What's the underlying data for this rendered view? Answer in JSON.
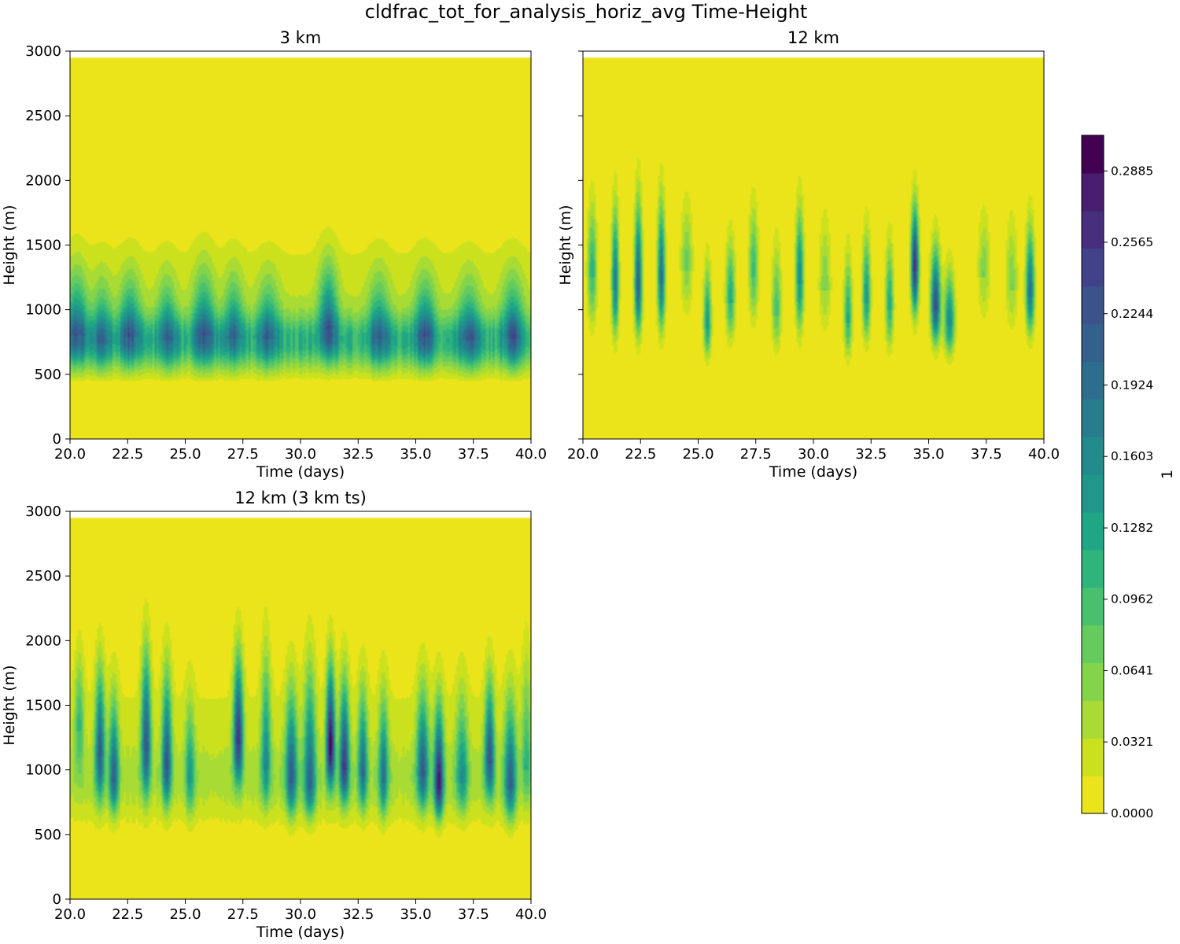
{
  "figure_title": "cldfrac_tot_for_analysis_horiz_avg Time-Height",
  "colors": {
    "levels": [
      "#ece41a",
      "#cbe11e",
      "#a8db34",
      "#84d44b",
      "#65cb5e",
      "#48c16e",
      "#2fb47c",
      "#21a685",
      "#1f988b",
      "#238a8d",
      "#277c8e",
      "#2d6e8e",
      "#33608d",
      "#3b528b",
      "#42428a",
      "#472f7d",
      "#481d6f",
      "#440154"
    ],
    "panel_bg": "#ece41a"
  },
  "colorbar": {
    "label": "1",
    "min": 0.0,
    "max": 0.3045,
    "ticks": [
      0.0,
      0.0321,
      0.0641,
      0.0962,
      0.1282,
      0.1603,
      0.1924,
      0.2244,
      0.2565,
      0.2885
    ],
    "tick_labels": [
      "0.0000",
      "0.0321",
      "0.0641",
      "0.0962",
      "0.1282",
      "0.1603",
      "0.1924",
      "0.2244",
      "0.2565",
      "0.2885"
    ]
  },
  "chart_data": [
    {
      "type": "heatmap",
      "title": "3 km",
      "xlabel": "Time (days)",
      "ylabel": "Height (m)",
      "xlim": [
        20.0,
        40.0
      ],
      "ylim": [
        0,
        3000
      ],
      "data_top": 2950,
      "x_ticks": [
        20.0,
        22.5,
        25.0,
        27.5,
        30.0,
        32.5,
        35.0,
        37.5,
        40.0
      ],
      "x_tick_labels": [
        "20.0",
        "22.5",
        "25.0",
        "27.5",
        "30.0",
        "32.5",
        "35.0",
        "37.5",
        "40.0"
      ],
      "y_ticks": [
        0,
        500,
        1000,
        1500,
        2000,
        2500,
        3000
      ],
      "y_tick_labels": [
        "0",
        "500",
        "1000",
        "1500",
        "2000",
        "2500",
        "3000"
      ],
      "show_y_tick_labels": true,
      "background": {
        "base_height": 750,
        "base_amplitude": 0.09,
        "base_spread": 200,
        "upper_amplitude": 0.03,
        "upper_spread": 500,
        "upper_center": 1050
      },
      "events": [
        {
          "time": 20.3,
          "height": 800,
          "amp": 0.11,
          "width": 0.45,
          "depth": 280,
          "top": 1750
        },
        {
          "time": 21.4,
          "height": 740,
          "amp": 0.08,
          "width": 0.4,
          "depth": 250,
          "top": 1650
        },
        {
          "time": 22.6,
          "height": 790,
          "amp": 0.1,
          "width": 0.45,
          "depth": 270,
          "top": 1700
        },
        {
          "time": 24.2,
          "height": 760,
          "amp": 0.09,
          "width": 0.4,
          "depth": 260,
          "top": 1650
        },
        {
          "time": 25.8,
          "height": 800,
          "amp": 0.1,
          "width": 0.45,
          "depth": 280,
          "top": 1800
        },
        {
          "time": 27.1,
          "height": 780,
          "amp": 0.09,
          "width": 0.4,
          "depth": 260,
          "top": 1700
        },
        {
          "time": 28.6,
          "height": 770,
          "amp": 0.09,
          "width": 0.45,
          "depth": 260,
          "top": 1650
        },
        {
          "time": 31.2,
          "height": 850,
          "amp": 0.12,
          "width": 0.4,
          "depth": 260,
          "top": 1850
        },
        {
          "time": 33.4,
          "height": 770,
          "amp": 0.09,
          "width": 0.45,
          "depth": 260,
          "top": 1700
        },
        {
          "time": 35.4,
          "height": 790,
          "amp": 0.1,
          "width": 0.45,
          "depth": 270,
          "top": 1700
        },
        {
          "time": 37.3,
          "height": 760,
          "amp": 0.09,
          "width": 0.45,
          "depth": 260,
          "top": 1650
        },
        {
          "time": 39.2,
          "height": 780,
          "amp": 0.1,
          "width": 0.45,
          "depth": 270,
          "top": 1700
        }
      ]
    },
    {
      "type": "heatmap",
      "title": "12 km",
      "xlabel": "Time (days)",
      "ylabel": "Height (m)",
      "xlim": [
        20.0,
        40.0
      ],
      "ylim": [
        0,
        3000
      ],
      "data_top": 2950,
      "x_ticks": [
        20.0,
        22.5,
        25.0,
        27.5,
        30.0,
        32.5,
        35.0,
        37.5,
        40.0
      ],
      "x_tick_labels": [
        "20.0",
        "22.5",
        "25.0",
        "27.5",
        "30.0",
        "32.5",
        "35.0",
        "37.5",
        "40.0"
      ],
      "y_ticks": [
        0,
        500,
        1000,
        1500,
        2000,
        2500,
        3000
      ],
      "y_tick_labels": [
        "0",
        "500",
        "1000",
        "1500",
        "2000",
        "2500",
        "3000"
      ],
      "show_y_tick_labels": false,
      "background": {
        "base_height": 1100,
        "base_amplitude": 0.0,
        "base_spread": 300,
        "upper_amplitude": 0.0,
        "upper_spread": 500,
        "upper_center": 1200
      },
      "events": [
        {
          "time": 20.4,
          "height": 1250,
          "amp": 0.1,
          "width": 0.2,
          "depth": 420,
          "top": 2350
        },
        {
          "time": 21.4,
          "height": 1150,
          "amp": 0.17,
          "width": 0.15,
          "depth": 400,
          "top": 2400
        },
        {
          "time": 22.4,
          "height": 1150,
          "amp": 0.2,
          "width": 0.16,
          "depth": 400,
          "top": 2500
        },
        {
          "time": 23.4,
          "height": 1200,
          "amp": 0.18,
          "width": 0.16,
          "depth": 420,
          "top": 2450
        },
        {
          "time": 24.5,
          "height": 1300,
          "amp": 0.06,
          "width": 0.25,
          "depth": 380,
          "top": 2300
        },
        {
          "time": 25.4,
          "height": 850,
          "amp": 0.13,
          "width": 0.16,
          "depth": 250,
          "top": 1800
        },
        {
          "time": 26.4,
          "height": 1050,
          "amp": 0.11,
          "width": 0.2,
          "depth": 320,
          "top": 2000
        },
        {
          "time": 27.4,
          "height": 1250,
          "amp": 0.09,
          "width": 0.2,
          "depth": 380,
          "top": 2300
        },
        {
          "time": 28.4,
          "height": 950,
          "amp": 0.08,
          "width": 0.2,
          "depth": 300,
          "top": 2000
        },
        {
          "time": 29.4,
          "height": 1200,
          "amp": 0.15,
          "width": 0.17,
          "depth": 420,
          "top": 2350
        },
        {
          "time": 30.5,
          "height": 1150,
          "amp": 0.05,
          "width": 0.25,
          "depth": 380,
          "top": 2200
        },
        {
          "time": 31.5,
          "height": 900,
          "amp": 0.11,
          "width": 0.17,
          "depth": 300,
          "top": 1900
        },
        {
          "time": 32.3,
          "height": 1050,
          "amp": 0.13,
          "width": 0.17,
          "depth": 330,
          "top": 2100
        },
        {
          "time": 33.3,
          "height": 1000,
          "amp": 0.11,
          "width": 0.17,
          "depth": 330,
          "top": 2000
        },
        {
          "time": 34.4,
          "height": 1300,
          "amp": 0.25,
          "width": 0.16,
          "depth": 380,
          "top": 2300
        },
        {
          "time": 35.3,
          "height": 1000,
          "amp": 0.22,
          "width": 0.2,
          "depth": 300,
          "top": 1950
        },
        {
          "time": 35.9,
          "height": 870,
          "amp": 0.15,
          "width": 0.22,
          "depth": 250,
          "top": 1700
        },
        {
          "time": 37.4,
          "height": 1250,
          "amp": 0.05,
          "width": 0.25,
          "depth": 380,
          "top": 2200
        },
        {
          "time": 38.6,
          "height": 1150,
          "amp": 0.05,
          "width": 0.25,
          "depth": 360,
          "top": 2200
        },
        {
          "time": 39.4,
          "height": 1100,
          "amp": 0.18,
          "width": 0.18,
          "depth": 330,
          "top": 2150
        }
      ]
    },
    {
      "type": "heatmap",
      "title": "12 km (3 km ts)",
      "xlabel": "Time (days)",
      "ylabel": "Height (m)",
      "xlim": [
        20.0,
        40.0
      ],
      "ylim": [
        0,
        3000
      ],
      "data_top": 2950,
      "x_ticks": [
        20.0,
        22.5,
        25.0,
        27.5,
        30.0,
        32.5,
        35.0,
        37.5,
        40.0
      ],
      "x_tick_labels": [
        "20.0",
        "22.5",
        "25.0",
        "27.5",
        "30.0",
        "32.5",
        "35.0",
        "37.5",
        "40.0"
      ],
      "y_ticks": [
        0,
        500,
        1000,
        1500,
        2000,
        2500,
        3000
      ],
      "y_tick_labels": [
        "0",
        "500",
        "1000",
        "1500",
        "2000",
        "2500",
        "3000"
      ],
      "show_y_tick_labels": true,
      "background": {
        "base_height": 900,
        "base_amplitude": 0.03,
        "base_spread": 300,
        "upper_amplitude": 0.02,
        "upper_spread": 600,
        "upper_center": 1300
      },
      "events": [
        {
          "time": 20.4,
          "height": 1300,
          "amp": 0.07,
          "width": 0.2,
          "depth": 420,
          "top": 2450
        },
        {
          "time": 21.3,
          "height": 1100,
          "amp": 0.17,
          "width": 0.2,
          "depth": 380,
          "top": 2450
        },
        {
          "time": 21.9,
          "height": 900,
          "amp": 0.16,
          "width": 0.2,
          "depth": 280,
          "top": 2150
        },
        {
          "time": 23.3,
          "height": 1150,
          "amp": 0.18,
          "width": 0.2,
          "depth": 380,
          "top": 2700
        },
        {
          "time": 24.2,
          "height": 1000,
          "amp": 0.17,
          "width": 0.2,
          "depth": 320,
          "top": 2500
        },
        {
          "time": 25.2,
          "height": 900,
          "amp": 0.09,
          "width": 0.2,
          "depth": 300,
          "top": 2100
        },
        {
          "time": 27.3,
          "height": 1200,
          "amp": 0.22,
          "width": 0.2,
          "depth": 350,
          "top": 2550
        },
        {
          "time": 28.5,
          "height": 1000,
          "amp": 0.11,
          "width": 0.2,
          "depth": 320,
          "top": 2800
        },
        {
          "time": 29.6,
          "height": 900,
          "amp": 0.16,
          "width": 0.25,
          "depth": 300,
          "top": 2300
        },
        {
          "time": 30.4,
          "height": 850,
          "amp": 0.15,
          "width": 0.25,
          "depth": 260,
          "top": 2650
        },
        {
          "time": 31.3,
          "height": 1150,
          "amp": 0.26,
          "width": 0.18,
          "depth": 330,
          "top": 2450
        },
        {
          "time": 31.9,
          "height": 1000,
          "amp": 0.2,
          "width": 0.2,
          "depth": 300,
          "top": 2350
        },
        {
          "time": 32.7,
          "height": 950,
          "amp": 0.14,
          "width": 0.2,
          "depth": 300,
          "top": 2250
        },
        {
          "time": 33.6,
          "height": 900,
          "amp": 0.13,
          "width": 0.2,
          "depth": 300,
          "top": 2200
        },
        {
          "time": 35.3,
          "height": 950,
          "amp": 0.16,
          "width": 0.25,
          "depth": 300,
          "top": 2250
        },
        {
          "time": 36.0,
          "height": 850,
          "amp": 0.23,
          "width": 0.2,
          "depth": 260,
          "top": 2100
        },
        {
          "time": 37.0,
          "height": 900,
          "amp": 0.1,
          "width": 0.25,
          "depth": 280,
          "top": 2200
        },
        {
          "time": 38.2,
          "height": 1050,
          "amp": 0.18,
          "width": 0.2,
          "depth": 320,
          "top": 2300
        },
        {
          "time": 39.1,
          "height": 850,
          "amp": 0.15,
          "width": 0.25,
          "depth": 280,
          "top": 2200
        },
        {
          "time": 39.8,
          "height": 1000,
          "amp": 0.06,
          "width": 0.2,
          "depth": 300,
          "top": 2750
        }
      ]
    }
  ]
}
